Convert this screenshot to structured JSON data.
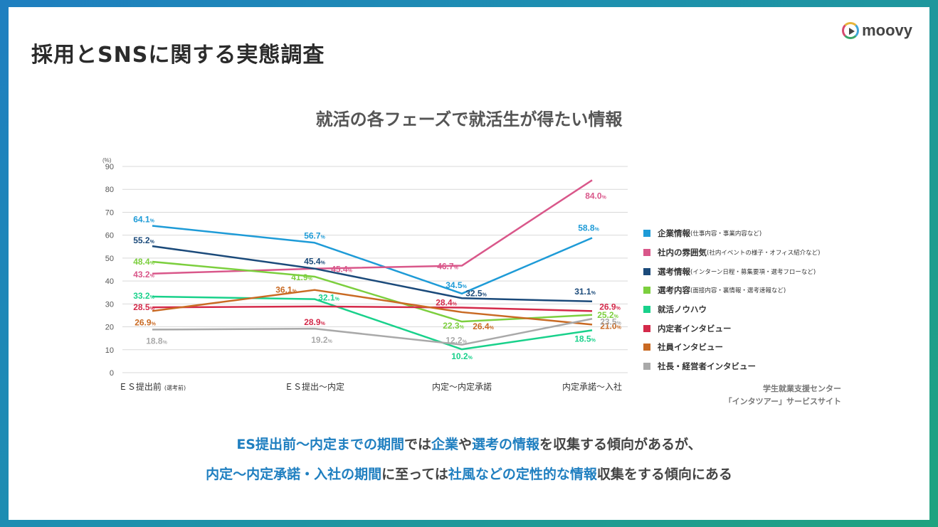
{
  "page": {
    "title": "採用とSNSに関する実態調査",
    "logo_text": "moovy"
  },
  "chart_data": {
    "type": "line",
    "title": "就活の各フェーズで就活生が得たい情報",
    "ylabel": "(%)",
    "ylim": [
      0,
      90
    ],
    "yticks": [
      0,
      10,
      20,
      30,
      40,
      50,
      60,
      70,
      80,
      90
    ],
    "grid": true,
    "legend_position": "right",
    "categories": [
      "ＥＳ提出前",
      "ＥＳ提出〜内定",
      "内定〜内定承諾",
      "内定承諾〜入社"
    ],
    "category_notes": [
      "(選考前)",
      "",
      "",
      ""
    ],
    "series": [
      {
        "name": "企業情報",
        "note": "(仕事内容・事業内容など)",
        "color": "#1e9bd7",
        "values": [
          64.1,
          56.7,
          34.5,
          58.8
        ]
      },
      {
        "name": "社内の雰囲気",
        "note": "(社内イベントの様子・オフィス紹介など)",
        "color": "#d9578a",
        "values": [
          43.2,
          45.4,
          46.7,
          84.0
        ]
      },
      {
        "name": "選考情報",
        "note": "(インターン日程・募集要項・選考フローなど)",
        "color": "#1b4a7a",
        "values": [
          55.2,
          45.4,
          32.5,
          31.1
        ]
      },
      {
        "name": "選考内容",
        "note": "(面接内容・裏情報・選考速報など)",
        "color": "#7ccf3e",
        "values": [
          48.4,
          41.9,
          22.3,
          25.2
        ]
      },
      {
        "name": "就活ノウハウ",
        "note": "",
        "color": "#19d18b",
        "values": [
          33.2,
          32.1,
          10.2,
          18.5
        ]
      },
      {
        "name": "内定者インタビュー",
        "note": "",
        "color": "#d42a4a",
        "values": [
          28.5,
          28.9,
          28.4,
          26.9
        ]
      },
      {
        "name": "社員インタビュー",
        "note": "",
        "color": "#c96a23",
        "values": [
          26.9,
          36.1,
          26.4,
          21.0
        ]
      },
      {
        "name": "社長・経営者インタビュー",
        "note": "",
        "color": "#a9a9a9",
        "values": [
          18.8,
          19.2,
          12.2,
          23.5
        ]
      }
    ],
    "data_labels": [
      {
        "series": 0,
        "point": 0,
        "text": "64.1",
        "dx": -12,
        "dy": -5
      },
      {
        "series": 0,
        "point": 1,
        "text": "56.7",
        "dx": 0,
        "dy": -6
      },
      {
        "series": 0,
        "point": 2,
        "text": "34.5",
        "dx": -8,
        "dy": -8
      },
      {
        "series": 0,
        "point": 3,
        "text": "58.8",
        "dx": -5,
        "dy": -10
      },
      {
        "series": 1,
        "point": 0,
        "text": "43.2",
        "dx": -12,
        "dy": 5
      },
      {
        "series": 1,
        "point": 1,
        "text": "45.4",
        "dx": 38,
        "dy": 5
      },
      {
        "series": 1,
        "point": 2,
        "text": "46.7",
        "dx": -20,
        "dy": 5
      },
      {
        "series": 1,
        "point": 3,
        "text": "84.0",
        "dx": 5,
        "dy": 26
      },
      {
        "series": 2,
        "point": 0,
        "text": "55.2",
        "dx": -12,
        "dy": -4
      },
      {
        "series": 2,
        "point": 1,
        "text": "45.4",
        "dx": 0,
        "dy": -6
      },
      {
        "series": 2,
        "point": 2,
        "text": "32.5",
        "dx": 20,
        "dy": -3
      },
      {
        "series": 2,
        "point": 3,
        "text": "31.1",
        "dx": -10,
        "dy": -10
      },
      {
        "series": 3,
        "point": 0,
        "text": "48.4",
        "dx": -12,
        "dy": 4
      },
      {
        "series": 3,
        "point": 1,
        "text": "41.9",
        "dx": -18,
        "dy": 5
      },
      {
        "series": 3,
        "point": 2,
        "text": "22.3",
        "dx": -12,
        "dy": 10
      },
      {
        "series": 3,
        "point": 3,
        "text": "25.2",
        "dx": 22,
        "dy": 4
      },
      {
        "series": 4,
        "point": 0,
        "text": "33.2",
        "dx": -12,
        "dy": 3
      },
      {
        "series": 4,
        "point": 1,
        "text": "32.1",
        "dx": 20,
        "dy": 2
      },
      {
        "series": 4,
        "point": 2,
        "text": "10.2",
        "dx": 0,
        "dy": 14
      },
      {
        "series": 4,
        "point": 3,
        "text": "18.5",
        "dx": -10,
        "dy": 16
      },
      {
        "series": 5,
        "point": 0,
        "text": "28.5",
        "dx": -12,
        "dy": 4
      },
      {
        "series": 5,
        "point": 1,
        "text": "28.9",
        "dx": 0,
        "dy": 26
      },
      {
        "series": 5,
        "point": 2,
        "text": "28.4",
        "dx": -22,
        "dy": -3
      },
      {
        "series": 5,
        "point": 3,
        "text": "26.9",
        "dx": 25,
        "dy": -2
      },
      {
        "series": 6,
        "point": 0,
        "text": "26.9",
        "dx": -10,
        "dy": 20
      },
      {
        "series": 6,
        "point": 1,
        "text": "36.1",
        "dx": -40,
        "dy": 4
      },
      {
        "series": 6,
        "point": 2,
        "text": "26.4",
        "dx": 30,
        "dy": 24
      },
      {
        "series": 6,
        "point": 3,
        "text": "21.0",
        "dx": 26,
        "dy": 6
      },
      {
        "series": 7,
        "point": 0,
        "text": "18.8",
        "dx": 6,
        "dy": 20
      },
      {
        "series": 7,
        "point": 1,
        "text": "19.2",
        "dx": 10,
        "dy": 20
      },
      {
        "series": 7,
        "point": 2,
        "text": "12.2",
        "dx": -8,
        "dy": -2
      },
      {
        "series": 7,
        "point": 3,
        "text": "23.5",
        "dx": 26,
        "dy": 8
      }
    ],
    "unit_suffix": "%"
  },
  "source": {
    "line1": "学生就業支援センター",
    "line2": "「インタツアー」サービスサイト"
  },
  "conclusion": {
    "line1": [
      {
        "text": "ES提出前〜内定までの期間",
        "hl": true
      },
      {
        "text": "では",
        "hl": false
      },
      {
        "text": "企業",
        "hl": true
      },
      {
        "text": "や",
        "hl": false
      },
      {
        "text": "選考の情報",
        "hl": true
      },
      {
        "text": "を収集する傾向があるが、",
        "hl": false
      }
    ],
    "line2": [
      {
        "text": "内定〜内定承諾・入社の期間",
        "hl": true
      },
      {
        "text": "に至っては",
        "hl": false
      },
      {
        "text": "社風などの定性的な情報",
        "hl": true
      },
      {
        "text": "収集をする傾向にある",
        "hl": false
      }
    ]
  }
}
